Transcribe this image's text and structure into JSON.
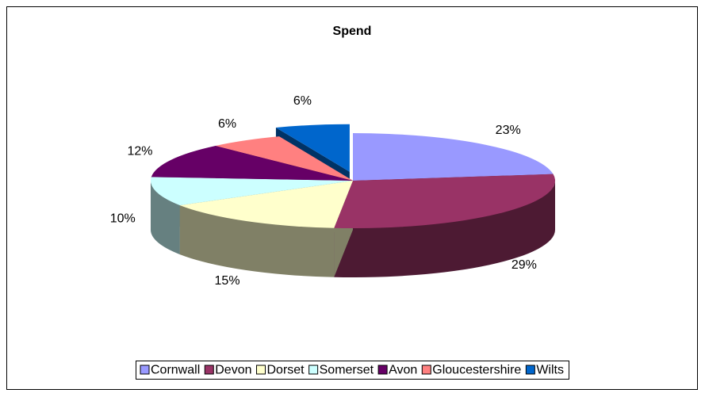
{
  "chart_data": {
    "type": "pie3d",
    "title": "Spend",
    "categories": [
      "Cornwall",
      "Devon",
      "Dorset",
      "Somerset",
      "Avon",
      "Gloucestershire",
      "Wilts"
    ],
    "values": [
      23,
      29,
      15,
      10,
      12,
      6,
      6
    ],
    "value_labels": [
      "23%",
      "29%",
      "15%",
      "10%",
      "12%",
      "6%",
      "6%"
    ],
    "colors": [
      "#9999ff",
      "#993366",
      "#ffffcc",
      "#ccffff",
      "#660066",
      "#ff8080",
      "#0066cc"
    ],
    "exploded": "Wilts",
    "legend": "bottom"
  }
}
